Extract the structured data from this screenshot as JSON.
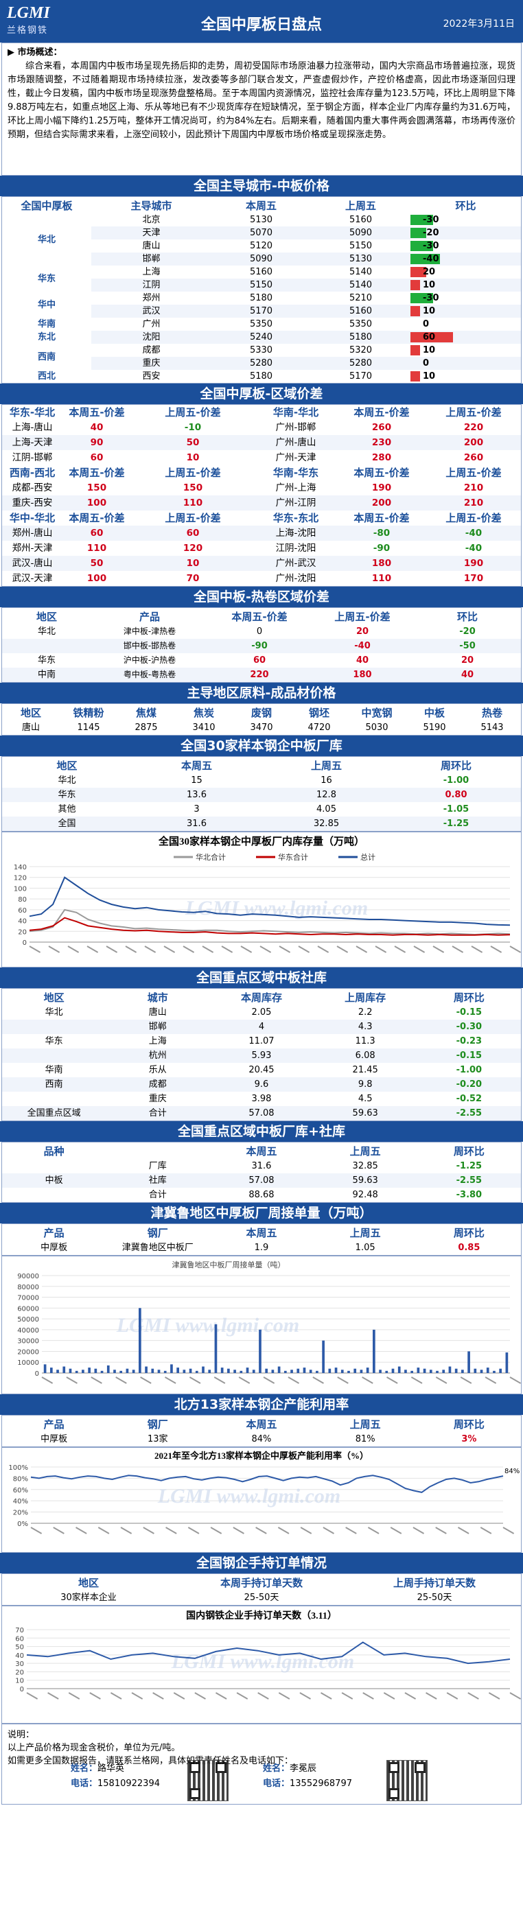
{
  "header": {
    "logo_en": "LGMI",
    "logo_cn": "兰格钢铁",
    "title": "全国中厚板日盘点",
    "date": "2022年3月11日"
  },
  "overview": {
    "heading": "▶ 市场概述：",
    "text": "综合来看，本周国内中板市场呈现先扬后抑的走势，周初受国际市场原油暴力拉涨带动，国内大宗商品市场普遍拉涨，现货市场跟随调整，不过随着期现市场持续拉涨，发改委等多部门联合发文，严查虚假炒作，产控价格虚高，因此市场逐渐回归理性，截止今日发稿，国内中板市场呈现涨势盘整格局。至于本周国内资源情况，监控社会库存量为123.5万吨，环比上周明显下降9.88万吨左右，如重点地区上海、乐从等地已有不少现货库存在短缺情况，至于钢企方面，样本企业厂内库存量约为31.6万吨，环比上周小幅下降约1.25万吨，整体开工情况尚可，约为84%左右。后期来看，随着国内重大事件两会圆满落幕，市场再传涨价预期，但结合实际需求来看，上涨空间较小，因此预计下周国内中厚板市场价格或呈现探涨走势。"
  },
  "price_table": {
    "title": "全国主导城市-中板价格",
    "headers": [
      "全国中厚板",
      "主导城市",
      "本周五",
      "上周五",
      "环比"
    ],
    "groups": [
      {
        "region": "华北",
        "rows": [
          {
            "city": "北京",
            "cur": "5130",
            "prev": "5160",
            "chg": "-30",
            "v": -30
          },
          {
            "city": "天津",
            "cur": "5070",
            "prev": "5090",
            "chg": "-20",
            "v": -20
          },
          {
            "city": "唐山",
            "cur": "5120",
            "prev": "5150",
            "chg": "-30",
            "v": -30
          },
          {
            "city": "邯郸",
            "cur": "5090",
            "prev": "5130",
            "chg": "-40",
            "v": -40
          }
        ]
      },
      {
        "region": "华东",
        "rows": [
          {
            "city": "上海",
            "cur": "5160",
            "prev": "5140",
            "chg": "20",
            "v": 20
          },
          {
            "city": "江阴",
            "cur": "5150",
            "prev": "5140",
            "chg": "10",
            "v": 10
          }
        ]
      },
      {
        "region": "华中",
        "rows": [
          {
            "city": "郑州",
            "cur": "5180",
            "prev": "5210",
            "chg": "-30",
            "v": -30
          },
          {
            "city": "武汉",
            "cur": "5170",
            "prev": "5160",
            "chg": "10",
            "v": 10
          }
        ]
      },
      {
        "region": "华南",
        "rows": [
          {
            "city": "广州",
            "cur": "5350",
            "prev": "5350",
            "chg": "0",
            "v": 0
          }
        ]
      },
      {
        "region": "东北",
        "rows": [
          {
            "city": "沈阳",
            "cur": "5240",
            "prev": "5180",
            "chg": "60",
            "v": 60
          }
        ]
      },
      {
        "region": "西南",
        "rows": [
          {
            "city": "成都",
            "cur": "5330",
            "prev": "5320",
            "chg": "10",
            "v": 10
          },
          {
            "city": "重庆",
            "cur": "5280",
            "prev": "5280",
            "chg": "0",
            "v": 0
          }
        ]
      },
      {
        "region": "西北",
        "rows": [
          {
            "city": "西安",
            "cur": "5180",
            "prev": "5170",
            "chg": "10",
            "v": 10
          }
        ]
      }
    ]
  },
  "spread_table": {
    "title": "全国中厚板-区域价差",
    "blocks": [
      {
        "left_head": [
          "华东-华北",
          "本周五-价差",
          "上周五-价差"
        ],
        "right_head": [
          "华南-华北",
          "本周五-价差",
          "上周五-价差"
        ],
        "rows": [
          [
            "上海-唐山",
            "40",
            "-10",
            "广州-邯郸",
            "260",
            "220"
          ],
          [
            "上海-天津",
            "90",
            "50",
            "广州-唐山",
            "230",
            "200"
          ],
          [
            "江阴-邯郸",
            "60",
            "10",
            "广州-天津",
            "280",
            "260"
          ]
        ]
      },
      {
        "left_head": [
          "西南-西北",
          "本周五-价差",
          "上周五-价差"
        ],
        "right_head": [
          "华南-华东",
          "本周五-价差",
          "上周五-价差"
        ],
        "rows": [
          [
            "成都-西安",
            "150",
            "150",
            "广州-上海",
            "190",
            "210"
          ],
          [
            "重庆-西安",
            "100",
            "110",
            "广州-江阴",
            "200",
            "210"
          ]
        ]
      },
      {
        "left_head": [
          "华中-华北",
          "本周五-价差",
          "上周五-价差"
        ],
        "right_head": [
          "华东-东北",
          "本周五-价差",
          "上周五-价差"
        ],
        "rows": [
          [
            "郑州-唐山",
            "60",
            "60",
            "上海-沈阳",
            "-80",
            "-40"
          ],
          [
            "郑州-天津",
            "110",
            "120",
            "江阴-沈阳",
            "-90",
            "-40"
          ],
          [
            "武汉-唐山",
            "50",
            "10",
            "广州-武汉",
            "180",
            "190"
          ],
          [
            "武汉-天津",
            "100",
            "70",
            "广州-沈阳",
            "110",
            "170"
          ]
        ]
      }
    ]
  },
  "hot_table": {
    "title": "全国中板-热卷区域价差",
    "headers": [
      "地区",
      "产品",
      "本周五-价差",
      "上周五-价差",
      "环比"
    ],
    "rows": [
      [
        "华北",
        "津中板-津热卷",
        "0",
        "20",
        "-20"
      ],
      [
        "",
        "邯中板-邯热卷",
        "-90",
        "-40",
        "-50"
      ],
      [
        "华东",
        "沪中板-沪热卷",
        "60",
        "40",
        "20"
      ],
      [
        "中南",
        "粤中板-粤热卷",
        "220",
        "180",
        "40"
      ]
    ]
  },
  "raw_table": {
    "title": "主导地区原料-成品材价格",
    "headers": [
      "地区",
      "铁精粉",
      "焦煤",
      "焦炭",
      "废钢",
      "钢坯",
      "中宽钢",
      "中板",
      "热卷"
    ],
    "row": [
      "唐山",
      "1145",
      "2875",
      "3410",
      "3470",
      "4720",
      "5030",
      "5190",
      "5143"
    ]
  },
  "stock_table": {
    "title": "全国30家样本钢企中板厂库",
    "headers": [
      "地区",
      "本周五",
      "上周五",
      "周环比"
    ],
    "rows": [
      [
        "华北",
        "15",
        "16",
        "-1.00"
      ],
      [
        "华东",
        "13.6",
        "12.8",
        "0.80"
      ],
      [
        "其他",
        "3",
        "4.05",
        "-1.05"
      ],
      [
        "全国",
        "31.6",
        "32.85",
        "-1.25"
      ]
    ]
  },
  "stock_chart": {
    "title": "全国30家样本钢企中厚板厂内库存量（万吨）",
    "legend": [
      "华北合计",
      "华东合计",
      "总计"
    ],
    "series_colors": [
      "#9a9a9a",
      "#c00000",
      "#1f4e9a"
    ],
    "ylim": [
      0,
      150
    ],
    "yticks": [
      "0",
      "20",
      "40",
      "60",
      "80",
      "100",
      "120",
      "140"
    ],
    "series": [
      {
        "name": "华北合计",
        "values": [
          20,
          22,
          28,
          60,
          55,
          42,
          35,
          30,
          28,
          25,
          26,
          24,
          23,
          22,
          21,
          22,
          22,
          20,
          19,
          20,
          21,
          20,
          19,
          18,
          19,
          18,
          17,
          18,
          17,
          16,
          17,
          16,
          16,
          15,
          16,
          15,
          16,
          15,
          14,
          15,
          16,
          15
        ]
      },
      {
        "name": "华东合计",
        "values": [
          22,
          24,
          30,
          45,
          38,
          30,
          27,
          24,
          22,
          21,
          22,
          20,
          19,
          18,
          18,
          19,
          17,
          16,
          16,
          17,
          16,
          15,
          16,
          15,
          14,
          15,
          15,
          14,
          15,
          14,
          14,
          13,
          14,
          14,
          13,
          14,
          13,
          13,
          13,
          14,
          13,
          13.6
        ]
      },
      {
        "name": "总计",
        "values": [
          48,
          52,
          70,
          120,
          105,
          90,
          78,
          70,
          65,
          62,
          64,
          60,
          58,
          56,
          55,
          57,
          53,
          52,
          50,
          52,
          51,
          50,
          48,
          46,
          47,
          46,
          45,
          44,
          43,
          42,
          42,
          41,
          40,
          39,
          38,
          37,
          37,
          36,
          35,
          33,
          32,
          31.6
        ]
      }
    ]
  },
  "social_table": {
    "title": "全国重点区域中板社库",
    "headers": [
      "地区",
      "城市",
      "本周库存",
      "上周库存",
      "周环比"
    ],
    "rows": [
      [
        "华北",
        "唐山",
        "2.05",
        "2.2",
        "-0.15"
      ],
      [
        "",
        "邯郸",
        "4",
        "4.3",
        "-0.30"
      ],
      [
        "华东",
        "上海",
        "11.07",
        "11.3",
        "-0.23"
      ],
      [
        "",
        "杭州",
        "5.93",
        "6.08",
        "-0.15"
      ],
      [
        "华南",
        "乐从",
        "20.45",
        "21.45",
        "-1.00"
      ],
      [
        "西南",
        "成都",
        "9.6",
        "9.8",
        "-0.20"
      ],
      [
        "",
        "重庆",
        "3.98",
        "4.5",
        "-0.52"
      ],
      [
        "全国重点区域",
        "合计",
        "57.08",
        "59.63",
        "-2.55"
      ]
    ]
  },
  "total_table": {
    "title": "全国重点区域中板厂库+社库",
    "headers": [
      "品种",
      "",
      "本周五",
      "上周五",
      "周环比"
    ],
    "rows": [
      [
        "",
        "厂库",
        "31.6",
        "32.85",
        "-1.25"
      ],
      [
        "中板",
        "社库",
        "57.08",
        "59.63",
        "-2.55"
      ],
      [
        "",
        "合计",
        "88.68",
        "92.48",
        "-3.80"
      ]
    ]
  },
  "order_table": {
    "title": "津冀鲁地区中厚板厂周接单量（万吨）",
    "headers": [
      "产品",
      "钢厂",
      "本周五",
      "上周五",
      "周环比"
    ],
    "row": [
      "中厚板",
      "津冀鲁地区中板厂",
      "1.9",
      "1.05",
      "0.85"
    ]
  },
  "order_chart": {
    "title": "津冀鲁地区中板厂周接单量（吨）",
    "ylim": [
      0,
      90000
    ],
    "yticks": [
      "0",
      "10000",
      "20000",
      "30000",
      "40000",
      "50000",
      "60000",
      "70000",
      "80000",
      "90000"
    ],
    "values": [
      8000,
      5000,
      3000,
      6000,
      4000,
      2000,
      3000,
      5000,
      4000,
      2000,
      7000,
      3000,
      2000,
      4000,
      3000,
      60000,
      6000,
      4000,
      3000,
      2000,
      8000,
      5000,
      3000,
      4000,
      2000,
      6000,
      3000,
      45000,
      5000,
      4000,
      3000,
      2000,
      5000,
      3000,
      40000,
      4000,
      3000,
      6000,
      2000,
      3000,
      4000,
      5000,
      3000,
      2000,
      30000,
      4000,
      5000,
      3000,
      2000,
      4000,
      3000,
      5000,
      40000,
      3000,
      2000,
      4000,
      6000,
      3000,
      2000,
      5000,
      4000,
      3000,
      2000,
      3000,
      6000,
      4000,
      3000,
      20000,
      4000,
      3000,
      5000,
      2000,
      4000,
      19000
    ]
  },
  "util_table": {
    "title": "北方13家样本钢企产能利用率",
    "headers": [
      "产品",
      "钢厂",
      "本周五",
      "上周五",
      "周环比"
    ],
    "row": [
      "中厚板",
      "13家",
      "84%",
      "81%",
      "3%"
    ]
  },
  "util_chart": {
    "title": "2021年至今北方13家样本钢企中厚板产能利用率（%）",
    "ylim": [
      0,
      100
    ],
    "yticks": [
      "0%",
      "20%",
      "40%",
      "60%",
      "80%",
      "100%"
    ],
    "last_label": "84%",
    "values": [
      82,
      80,
      83,
      84,
      81,
      79,
      82,
      84,
      83,
      80,
      78,
      82,
      85,
      84,
      81,
      79,
      76,
      80,
      82,
      83,
      79,
      77,
      80,
      82,
      81,
      78,
      74,
      78,
      83,
      84,
      80,
      76,
      80,
      82,
      81,
      83,
      79,
      75,
      68,
      72,
      80,
      83,
      85,
      82,
      78,
      70,
      62,
      58,
      55,
      65,
      72,
      78,
      80,
      77,
      72,
      74,
      78,
      81,
      84
    ]
  },
  "hand_table": {
    "title": "全国钢企手持订单情况",
    "headers": [
      "地区",
      "本周手持订单天数",
      "上周手持订单天数"
    ],
    "row": [
      "30家样本企业",
      "25-50天",
      "25-50天"
    ]
  },
  "hand_chart": {
    "title": "国内钢铁企业手持订单天数（3.11）",
    "ylim": [
      0,
      70
    ],
    "yticks": [
      "0",
      "10",
      "20",
      "30",
      "40",
      "50",
      "60",
      "70"
    ],
    "values": [
      40,
      38,
      42,
      45,
      35,
      40,
      42,
      38,
      36,
      44,
      48,
      45,
      40,
      42,
      35,
      38,
      55,
      40,
      42,
      38,
      36,
      30,
      32,
      35
    ]
  },
  "footer": {
    "note_head": "说明：",
    "note1": "以上产品价格为现金含税价，单位为元/吨。",
    "note2": "如需更多全国数据报告，请联系兰格网，具体如需责任姓名及电话如下：",
    "c1_name_label": "姓名：",
    "c1_name": "路华英",
    "c1_tel_label": "电话：",
    "c1_tel": "15810922394",
    "c2_name_label": "姓名：",
    "c2_name": "李冕辰",
    "c2_tel_label": "电话：",
    "c2_tel": "13552968797"
  },
  "watermark": "LGMI www.lgmi.com"
}
